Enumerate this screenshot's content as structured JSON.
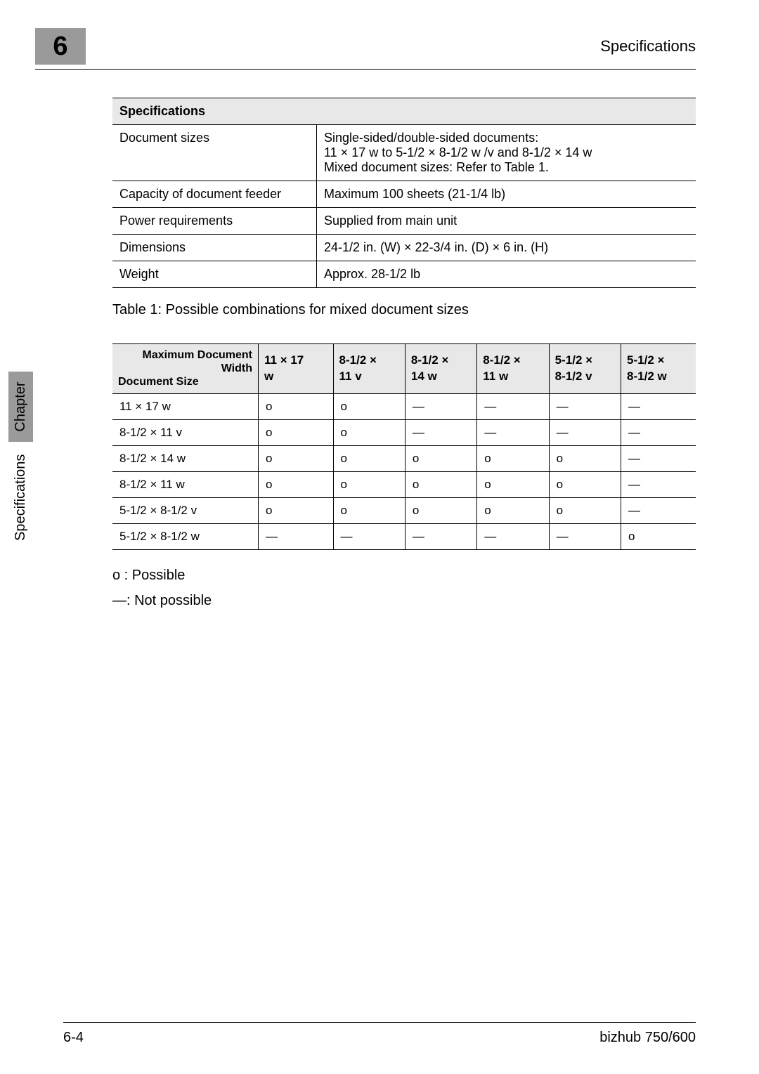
{
  "header": {
    "chapter_number": "6",
    "title": "Specifications"
  },
  "spec_table": {
    "header": "Specifications",
    "rows": [
      {
        "label": "Document sizes",
        "value": "Single-sided/double-sided documents:\n11 × 17 w  to 5-1/2 × 8-1/2 w /v  and 8-1/2 × 14 w\nMixed document sizes: Refer to Table 1."
      },
      {
        "label": "Capacity of document feeder",
        "value": "Maximum 100 sheets (21-1/4 lb)"
      },
      {
        "label": "Power requirements",
        "value": "Supplied from main unit"
      },
      {
        "label": "Dimensions",
        "value": "24-1/2 in. (W) × 22-3/4 in. (D) × 6 in. (H)"
      },
      {
        "label": "Weight",
        "value": "Approx. 28-1/2 lb"
      }
    ]
  },
  "matrix": {
    "caption": "Table 1: Possible combinations for mixed document sizes",
    "corner_top": "Maximum Document\nWidth",
    "corner_bottom": "Document Size",
    "columns": [
      "11 × 17 w",
      "8-1/2 × 11 v",
      "8-1/2 × 14 w",
      "8-1/2 × 11 w",
      "5-1/2 × 8-1/2 v",
      "5-1/2 × 8-1/2 w"
    ],
    "row_labels": [
      "11 × 17 w",
      "8-1/2 × 11 v",
      "8-1/2 × 14 w",
      "8-1/2 × 11 w",
      "5-1/2 × 8-1/2 v",
      "5-1/2 × 8-1/2 w"
    ],
    "cells": [
      [
        "o",
        "o",
        "—",
        "—",
        "—",
        "—"
      ],
      [
        "o",
        "o",
        "—",
        "—",
        "—",
        "—"
      ],
      [
        "o",
        "o",
        "o",
        "o",
        "o",
        "—"
      ],
      [
        "o",
        "o",
        "o",
        "o",
        "o",
        "—"
      ],
      [
        "o",
        "o",
        "o",
        "o",
        "o",
        "—"
      ],
      [
        "—",
        "—",
        "—",
        "—",
        "—",
        "o"
      ]
    ]
  },
  "legend": {
    "possible": "o  : Possible",
    "not_possible": "—: Not possible"
  },
  "side_tab": {
    "section": "Specifications",
    "chapter": "Chapter"
  },
  "footer": {
    "page_num": "6-4",
    "model": "bizhub 750/600"
  }
}
